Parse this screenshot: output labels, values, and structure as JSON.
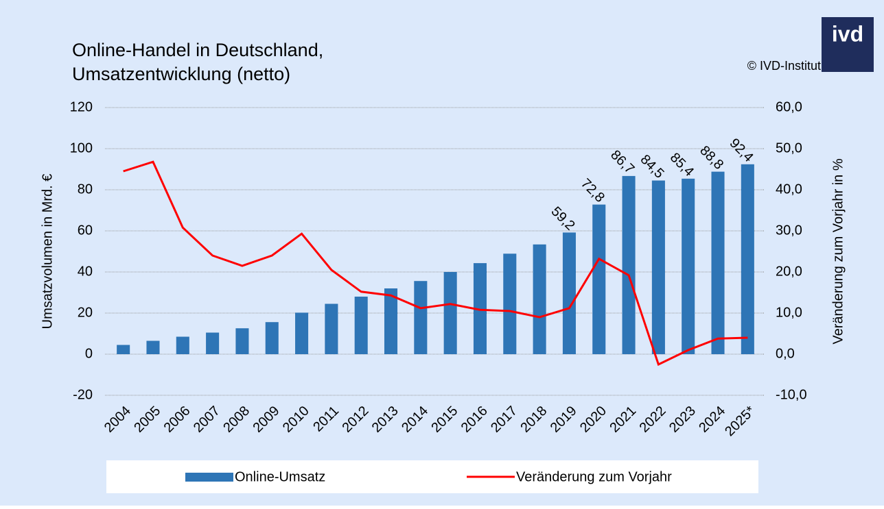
{
  "chart_data": {
    "type": "bar_line",
    "title": [
      "Online-Handel in Deutschland,",
      "Umsatzentwicklung (netto)"
    ],
    "source": "© IVD-Institut",
    "logo": "ivd",
    "y_label": "Umsatzvolumen in Mrd. €",
    "y2_label": "Veränderung zum Vorjahr in %",
    "categories": [
      "2004",
      "2005",
      "2006",
      "2007",
      "2008",
      "2009",
      "2010",
      "2011",
      "2012",
      "2013",
      "2014",
      "2015",
      "2016",
      "2017",
      "2018",
      "2019",
      "2020",
      "2021",
      "2022",
      "2023",
      "2024",
      "2025*"
    ],
    "series": [
      {
        "name": "Online-Umsatz",
        "type": "bar",
        "color": "#2e75b6",
        "values": [
          4.5,
          6.5,
          8.5,
          10.5,
          12.6,
          15.6,
          20.2,
          24.5,
          28,
          32,
          35.6,
          40,
          44.3,
          48.9,
          53.4,
          59.2,
          72.8,
          86.7,
          84.5,
          85.4,
          88.8,
          92.4
        ],
        "value_labels": [
          null,
          null,
          null,
          null,
          null,
          null,
          null,
          null,
          null,
          null,
          null,
          null,
          null,
          null,
          null,
          "59,2",
          "72,8",
          "86,7",
          "84,5",
          "85,4",
          "88,8",
          "92,4"
        ]
      },
      {
        "name": "Veränderung zum Vorjahr",
        "type": "line",
        "axis": "y2",
        "color": "#ff0000",
        "values": [
          44.5,
          46.8,
          30.8,
          24,
          21.5,
          24,
          29.3,
          20.5,
          15.2,
          14.3,
          11.2,
          12.2,
          10.8,
          10.5,
          9,
          11.2,
          23.2,
          19.2,
          -2.5,
          1,
          3.8,
          4.0
        ]
      }
    ],
    "ylim": [
      -20,
      120
    ],
    "yticks": [
      -20,
      0,
      20,
      40,
      60,
      80,
      100,
      120
    ],
    "y2lim": [
      -10,
      60
    ],
    "y2ticks": [
      {
        "value": -10,
        "label": "-10,0"
      },
      {
        "value": 0,
        "label": "0,0"
      },
      {
        "value": 10,
        "label": "10,0"
      },
      {
        "value": 20,
        "label": "20,0"
      },
      {
        "value": 30,
        "label": "30,0"
      },
      {
        "value": 40,
        "label": "40,0"
      },
      {
        "value": 50,
        "label": "50,0"
      },
      {
        "value": 60,
        "label": "60,0"
      }
    ],
    "grid": true,
    "legend": "bottom"
  }
}
